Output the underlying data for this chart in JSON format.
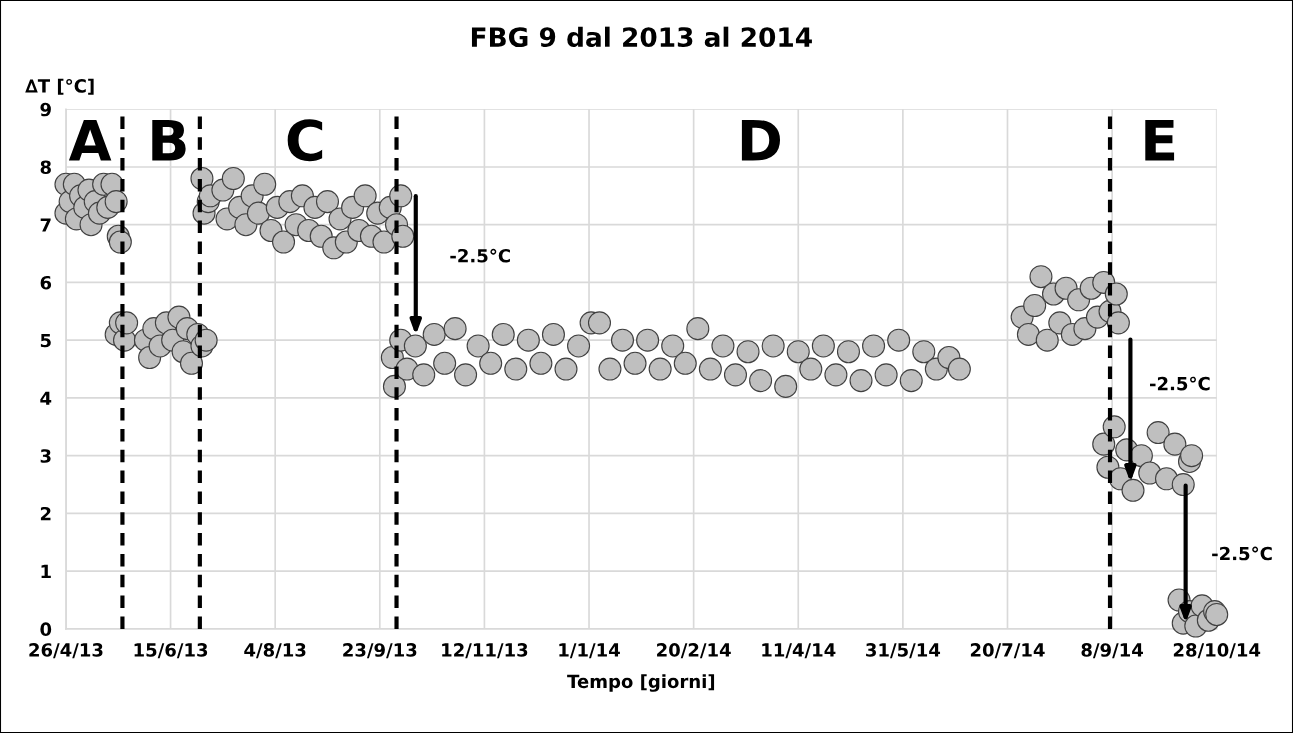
{
  "chart_data": {
    "type": "scatter",
    "title": "FBG 9 dal 2013 al 2014",
    "xlabel": "Tempo [giorni]",
    "ylabel": "∆T [°C]",
    "marker": "circle",
    "grid": true,
    "xlim": [
      "2013-04-26",
      "2014-10-28"
    ],
    "xticks": [
      {
        "value": "2013-04-26",
        "label": "26/4/13"
      },
      {
        "value": "2013-06-15",
        "label": "15/6/13"
      },
      {
        "value": "2013-08-04",
        "label": "4/8/13"
      },
      {
        "value": "2013-09-23",
        "label": "23/9/13"
      },
      {
        "value": "2013-11-12",
        "label": "12/11/13"
      },
      {
        "value": "2014-01-01",
        "label": "1/1/14"
      },
      {
        "value": "2014-02-20",
        "label": "20/2/14"
      },
      {
        "value": "2014-04-11",
        "label": "11/4/14"
      },
      {
        "value": "2014-05-31",
        "label": "31/5/14"
      },
      {
        "value": "2014-07-20",
        "label": "20/7/14"
      },
      {
        "value": "2014-09-08",
        "label": "8/9/14"
      },
      {
        "value": "2014-10-28",
        "label": "28/10/14"
      }
    ],
    "ylim": [
      0,
      9
    ],
    "yticks": [
      0,
      1,
      2,
      3,
      4,
      5,
      6,
      7,
      8,
      9
    ],
    "ref_lines": [
      {
        "axis": "x",
        "value": "2013-05-23",
        "color": "#000000",
        "line_style": "dashed"
      },
      {
        "axis": "x",
        "value": "2013-06-29",
        "color": "#000000",
        "line_style": "dashed"
      },
      {
        "axis": "x",
        "value": "2013-10-01",
        "color": "#000000",
        "line_style": "dashed"
      },
      {
        "axis": "x",
        "value": "2014-09-07",
        "color": "#000000",
        "line_style": "dashed"
      }
    ],
    "annotations": [
      "A",
      "B",
      "C",
      "D",
      "E",
      "-2.5°C",
      "-2.5°C",
      "-2.5°C"
    ],
    "series": [
      {
        "color": "#bfbfbf",
        "x": [
          "2013-04-26",
          "2013-04-26",
          "2013-04-28",
          "2013-04-30",
          "2013-05-01",
          "2013-05-03",
          "2013-05-05",
          "2013-05-07",
          "2013-05-08",
          "2013-05-10",
          "2013-05-12",
          "2013-05-14",
          "2013-05-16",
          "2013-05-18",
          "2013-05-20",
          "2013-05-21",
          "2013-05-22",
          "2013-05-20",
          "2013-05-22",
          "2013-05-24",
          "2013-05-25",
          "2013-06-03",
          "2013-06-05",
          "2013-06-07",
          "2013-06-10",
          "2013-06-13",
          "2013-06-16",
          "2013-06-19",
          "2013-06-21",
          "2013-06-23",
          "2013-06-25",
          "2013-06-28",
          "2013-06-30",
          "2013-07-02",
          "2013-06-30",
          "2013-07-01",
          "2013-07-03",
          "2013-07-04",
          "2013-07-10",
          "2013-07-12",
          "2013-07-15",
          "2013-07-18",
          "2013-07-21",
          "2013-07-24",
          "2013-07-27",
          "2013-07-30",
          "2013-08-02",
          "2013-08-05",
          "2013-08-08",
          "2013-08-11",
          "2013-08-14",
          "2013-08-17",
          "2013-08-20",
          "2013-08-23",
          "2013-08-26",
          "2013-08-29",
          "2013-09-01",
          "2013-09-04",
          "2013-09-07",
          "2013-09-10",
          "2013-09-13",
          "2013-09-16",
          "2013-09-19",
          "2013-09-22",
          "2013-09-25",
          "2013-09-28",
          "2013-10-01",
          "2013-10-03",
          "2013-10-04",
          "2013-09-29",
          "2013-09-30",
          "2013-10-03",
          "2013-10-06",
          "2013-10-10",
          "2013-10-14",
          "2013-10-19",
          "2013-10-24",
          "2013-10-29",
          "2013-11-03",
          "2013-11-09",
          "2013-11-15",
          "2013-11-21",
          "2013-11-27",
          "2013-12-03",
          "2013-12-09",
          "2013-12-15",
          "2013-12-21",
          "2013-12-27",
          "2014-01-02",
          "2014-01-06",
          "2014-01-11",
          "2014-01-17",
          "2014-01-23",
          "2014-01-29",
          "2014-02-04",
          "2014-02-10",
          "2014-02-16",
          "2014-02-22",
          "2014-02-28",
          "2014-03-06",
          "2014-03-12",
          "2014-03-18",
          "2014-03-24",
          "2014-03-30",
          "2014-04-05",
          "2014-04-11",
          "2014-04-17",
          "2014-04-23",
          "2014-04-29",
          "2014-05-05",
          "2014-05-11",
          "2014-05-17",
          "2014-05-23",
          "2014-05-29",
          "2014-06-04",
          "2014-06-10",
          "2014-06-16",
          "2014-06-22",
          "2014-06-27",
          "2014-07-27",
          "2014-07-30",
          "2014-08-02",
          "2014-08-05",
          "2014-08-08",
          "2014-08-11",
          "2014-08-14",
          "2014-08-17",
          "2014-08-20",
          "2014-08-23",
          "2014-08-26",
          "2014-08-29",
          "2014-09-01",
          "2014-09-04",
          "2014-09-07",
          "2014-09-10",
          "2014-09-11",
          "2014-09-04",
          "2014-09-06",
          "2014-09-09",
          "2014-09-12",
          "2014-09-15",
          "2014-09-18",
          "2014-09-22",
          "2014-09-26",
          "2014-09-30",
          "2014-10-04",
          "2014-10-08",
          "2014-10-12",
          "2014-10-15",
          "2014-10-16",
          "2014-10-10",
          "2014-10-12",
          "2014-10-15",
          "2014-10-18",
          "2014-10-21",
          "2014-10-24",
          "2014-10-27",
          "2014-10-28"
        ],
        "values": [
          7.7,
          7.2,
          7.4,
          7.7,
          7.1,
          7.5,
          7.3,
          7.6,
          7.0,
          7.4,
          7.2,
          7.7,
          7.3,
          7.7,
          7.4,
          6.8,
          6.7,
          5.1,
          5.3,
          5.0,
          5.3,
          5.0,
          4.7,
          5.2,
          4.9,
          5.3,
          5.0,
          5.4,
          4.8,
          5.2,
          4.6,
          5.1,
          4.9,
          5.0,
          7.8,
          7.2,
          7.4,
          7.5,
          7.6,
          7.1,
          7.8,
          7.3,
          7.0,
          7.5,
          7.2,
          7.7,
          6.9,
          7.3,
          6.7,
          7.4,
          7.0,
          7.5,
          6.9,
          7.3,
          6.8,
          7.4,
          6.6,
          7.1,
          6.7,
          7.3,
          6.9,
          7.5,
          6.8,
          7.2,
          6.7,
          7.3,
          7.0,
          7.5,
          6.8,
          4.7,
          4.2,
          5.0,
          4.5,
          4.9,
          4.4,
          5.1,
          4.6,
          5.2,
          4.4,
          4.9,
          4.6,
          5.1,
          4.5,
          5.0,
          4.6,
          5.1,
          4.5,
          4.9,
          5.3,
          5.3,
          4.5,
          5.0,
          4.6,
          5.0,
          4.5,
          4.9,
          4.6,
          5.2,
          4.5,
          4.9,
          4.4,
          4.8,
          4.3,
          4.9,
          4.2,
          4.8,
          4.5,
          4.9,
          4.4,
          4.8,
          4.3,
          4.9,
          4.4,
          5.0,
          4.3,
          4.8,
          4.5,
          4.7,
          4.5,
          5.4,
          5.1,
          5.6,
          6.1,
          5.0,
          5.8,
          5.3,
          5.9,
          5.1,
          5.7,
          5.2,
          5.9,
          5.4,
          6.0,
          5.5,
          5.8,
          5.3,
          3.2,
          2.8,
          3.5,
          2.6,
          3.1,
          2.4,
          3.0,
          2.7,
          3.4,
          2.6,
          3.2,
          2.5,
          2.9,
          3.0,
          0.5,
          0.1,
          0.3,
          0.05,
          0.4,
          0.15,
          0.3,
          0.25
        ]
      }
    ]
  }
}
